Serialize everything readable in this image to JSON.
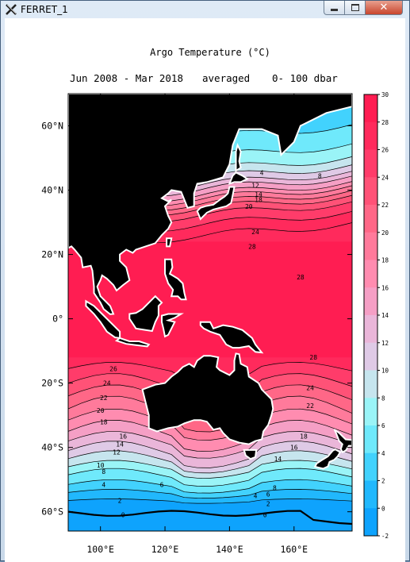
{
  "window": {
    "title": "FERRET_1",
    "app_icon": "ferret-x-icon",
    "controls": {
      "minimize": "minimize-icon",
      "maximize": "maximize-icon",
      "close": "close-icon"
    }
  },
  "plot": {
    "title": "Argo Temperature (°C)",
    "time_label": "Jun 2008 - Mar 2018",
    "averaged_label": "averaged",
    "depth_label": "0- 100 dbar",
    "y_ticks": [
      {
        "lat": 60,
        "label": "60°N"
      },
      {
        "lat": 40,
        "label": "40°N"
      },
      {
        "lat": 20,
        "label": "20°N"
      },
      {
        "lat": 0,
        "label": "0°"
      },
      {
        "lat": -20,
        "label": "20°S"
      },
      {
        "lat": -40,
        "label": "40°S"
      },
      {
        "lat": -60,
        "label": "60°S"
      }
    ],
    "x_ticks": [
      {
        "lon": 100,
        "label": "100°E"
      },
      {
        "lon": 120,
        "label": "120°E"
      },
      {
        "lon": 140,
        "label": "140°E"
      },
      {
        "lon": 160,
        "label": "160°E"
      }
    ],
    "extent": {
      "lon": [
        90,
        178
      ],
      "lat": [
        -66,
        70
      ]
    },
    "colorbar": {
      "ticks": [
        "30",
        "28",
        "26",
        "24",
        "22",
        "20",
        "18",
        "16",
        "14",
        "12",
        "10",
        "8",
        "6",
        "4",
        "2",
        "0",
        "-2"
      ],
      "colors": [
        "#ff1d52",
        "#ff2a5c",
        "#ff3c6a",
        "#ff5277",
        "#ff6787",
        "#ff7a9b",
        "#ff8cb0",
        "#f59fc5",
        "#eab6d9",
        "#dfcae6",
        "#c6e5ee",
        "#9af4f7",
        "#6fe9fb",
        "#42d2fd",
        "#21b8fd",
        "#0ea3fd"
      ]
    },
    "contour_labels": [
      {
        "lon": 150,
        "lat": 45.5,
        "text": "4"
      },
      {
        "lon": 168,
        "lat": 44.5,
        "text": "8"
      },
      {
        "lon": 148,
        "lat": 41.5,
        "text": "12"
      },
      {
        "lon": 149,
        "lat": 38.8,
        "text": "14"
      },
      {
        "lon": 149,
        "lat": 37,
        "text": "18"
      },
      {
        "lon": 146,
        "lat": 35,
        "text": "20"
      },
      {
        "lon": 148,
        "lat": 27,
        "text": "24"
      },
      {
        "lon": 147,
        "lat": 22.5,
        "text": "28"
      },
      {
        "lon": 162,
        "lat": 13,
        "text": "28"
      },
      {
        "lon": 166,
        "lat": -12,
        "text": "28"
      },
      {
        "lon": 104,
        "lat": -15.5,
        "text": "26"
      },
      {
        "lon": 102,
        "lat": -20,
        "text": "24"
      },
      {
        "lon": 101,
        "lat": -24.5,
        "text": "22"
      },
      {
        "lon": 100,
        "lat": -28.5,
        "text": "20"
      },
      {
        "lon": 101,
        "lat": -32,
        "text": "18"
      },
      {
        "lon": 107,
        "lat": -36.5,
        "text": "16"
      },
      {
        "lon": 106,
        "lat": -39,
        "text": "14"
      },
      {
        "lon": 105,
        "lat": -41.5,
        "text": "12"
      },
      {
        "lon": 100,
        "lat": -45.5,
        "text": "10"
      },
      {
        "lon": 101,
        "lat": -47.5,
        "text": "8"
      },
      {
        "lon": 119,
        "lat": -51.5,
        "text": "6"
      },
      {
        "lon": 101,
        "lat": -51.5,
        "text": "4"
      },
      {
        "lon": 106,
        "lat": -56.5,
        "text": "2"
      },
      {
        "lon": 107,
        "lat": -61,
        "text": "0"
      },
      {
        "lon": 165,
        "lat": -21.5,
        "text": "24"
      },
      {
        "lon": 165,
        "lat": -27,
        "text": "22"
      },
      {
        "lon": 163,
        "lat": -36.5,
        "text": "18"
      },
      {
        "lon": 160,
        "lat": -40,
        "text": "16"
      },
      {
        "lon": 155,
        "lat": -43.5,
        "text": "14"
      },
      {
        "lon": 154,
        "lat": -52.5,
        "text": "8"
      },
      {
        "lon": 152,
        "lat": -54.5,
        "text": "6"
      },
      {
        "lon": 148,
        "lat": -55,
        "text": "4"
      },
      {
        "lon": 152,
        "lat": -57.5,
        "text": "2"
      },
      {
        "lon": 151,
        "lat": -61,
        "text": "0"
      }
    ]
  }
}
